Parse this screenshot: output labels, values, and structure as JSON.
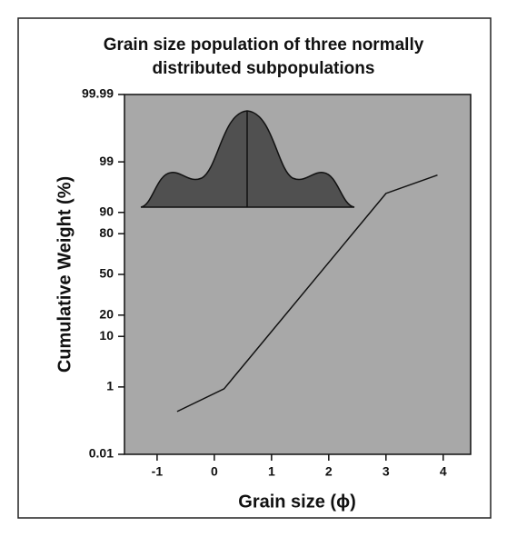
{
  "chart_data": {
    "type": "line",
    "title": [
      "Grain size population of three normally",
      "distributed subpopulations"
    ],
    "x_label": "Grain size (ϕ)",
    "y_label": "Cumulative Weight (%)",
    "x": [
      -0.65,
      0.17,
      3.0,
      3.9
    ],
    "series": [
      {
        "color": "#111111",
        "values": [
          0.23,
          0.9,
          95.3,
          98
        ]
      }
    ],
    "xlim": [
      -1.57,
      4.48
    ],
    "xticks": [
      -1,
      0,
      1,
      2,
      3,
      4
    ],
    "ylim": [
      0.01,
      99.99
    ],
    "yticks": [
      0.01,
      1,
      10,
      20,
      50,
      80,
      90,
      99,
      99.99
    ],
    "yscale": "probability"
  }
}
